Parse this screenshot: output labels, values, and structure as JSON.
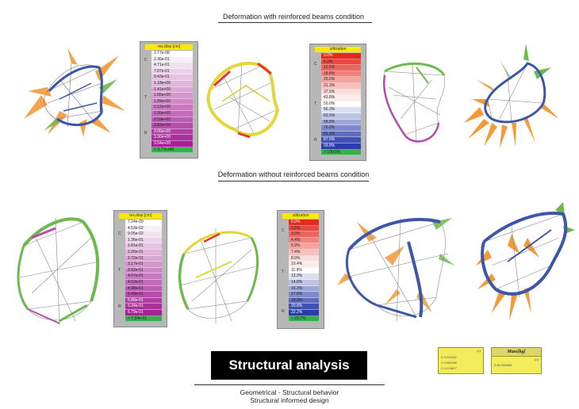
{
  "section_top": {
    "title": "Deformation with reinforced beams condition"
  },
  "section_bottom": {
    "title": "Deformation without reinforced beams condition"
  },
  "legend_top_disp": {
    "header": "res.disp.[cm]",
    "side_labels": [
      "C",
      "T",
      "R"
    ],
    "rows": [
      "3.77e-08",
      "2.36e-01",
      "4.71e-01",
      "7.07e-01",
      "9.43e-01",
      "1.18e+00",
      "1.41e+00",
      "1.65e+00",
      "1.89e+00",
      "2.12e+00",
      "2.36e+00",
      "2.59e+00",
      "2.83e+00",
      "3.06e+00",
      "3.30e+00",
      "3.54e+00",
      "> 3.77e+00"
    ],
    "colors": [
      "#ffffff",
      "#f8eff7",
      "#f2e1f0",
      "#ecd2e9",
      "#e6c3e2",
      "#e0b4db",
      "#daa6d4",
      "#d497cd",
      "#ce88c6",
      "#c879bf",
      "#c26bb8",
      "#bc5cb1",
      "#b64daa",
      "#b03fa3",
      "#aa309c",
      "#a42295",
      "#36b04a"
    ]
  },
  "legend_top_util": {
    "header": "utilization",
    "side_labels": [
      "C",
      "T",
      "R"
    ],
    "rows": [
      "0.0%",
      "6.3%",
      "12.5%",
      "18.8%",
      "25.0%",
      "31.3%",
      "37.5%",
      "43.8%",
      "50.0%",
      "56.3%",
      "62.5%",
      "68.8%",
      "75.0%",
      "81.3%",
      "87.5%",
      "93.8%",
      "> 100.0%"
    ],
    "colors": [
      "#e42a20",
      "#e8483f",
      "#ec665e",
      "#f0847d",
      "#f4a39d",
      "#f7c1bd",
      "#fadedc",
      "#fbeceb",
      "#ffffff",
      "#dcdff0",
      "#bdc3e4",
      "#9ea6d8",
      "#7f8acb",
      "#606dbf",
      "#4151b3",
      "#2b3da8",
      "#36b04a"
    ]
  },
  "legend_bottom_disp": {
    "header": "res.disp.[cm]",
    "side_labels": [
      "C",
      "T",
      "R"
    ],
    "rows": [
      "7.24e-09",
      "4.53e-02",
      "9.05e-02",
      "1.36e-01",
      "1.81e-01",
      "2.26e-01",
      "2.72e-01",
      "3.17e-01",
      "3.62e-01",
      "4.07e-01",
      "4.53e-01",
      "4.98e-01",
      "5.43e-01",
      "5.88e-01",
      "6.34e-01",
      "6.79e-01",
      "> 7.24e-01"
    ],
    "colors": [
      "#ffffff",
      "#f8eff7",
      "#f2e1f0",
      "#ecd2e9",
      "#e6c3e2",
      "#e0b4db",
      "#daa6d4",
      "#d497cd",
      "#ce88c6",
      "#c879bf",
      "#c26bb8",
      "#bc5cb1",
      "#b64daa",
      "#b03fa3",
      "#aa309c",
      "#a42295",
      "#36b04a"
    ]
  },
  "legend_bottom_util": {
    "header": "utilization",
    "side_labels": [
      "C",
      "T",
      "R"
    ],
    "rows": [
      "0.0%",
      "1.5%",
      "3.0%",
      "4.4%",
      "5.9%",
      "7.4%",
      "8.9%",
      "10.4%",
      "11.9%",
      "13.3%",
      "14.8%",
      "16.3%",
      "17.8%",
      "19.3%",
      "20.8%",
      "22.2%",
      "> 23.7%"
    ],
    "colors": [
      "#e42a20",
      "#e8483f",
      "#ec665e",
      "#f0847d",
      "#f4a39d",
      "#f7c1bd",
      "#fadedc",
      "#fbeceb",
      "#ffffff",
      "#dcdff0",
      "#bdc3e4",
      "#9ea6d8",
      "#7f8acb",
      "#606dbf",
      "#4151b3",
      "#2b3da8",
      "#36b04a"
    ]
  },
  "footer": {
    "title": "Structural analysis",
    "subtitle_1": "Geometrical - Structural behavior",
    "subtitle_2": "Structural  informed design"
  },
  "node_left": {
    "header": "{0}",
    "lines": [
      "0 0.031501",
      "1 0.050989",
      "2 0.113847"
    ]
  },
  "node_mass": {
    "header": "Mass[kg]",
    "tag": "{0}",
    "value": "0 88.058688"
  },
  "palette": {
    "orange": "#f39a3a",
    "green": "#6cb94d",
    "blue": "#3e56a6",
    "purple": "#b64daa",
    "yellow": "#e2d63a",
    "red": "#e23a2e",
    "wire": "#7a7a7a"
  }
}
